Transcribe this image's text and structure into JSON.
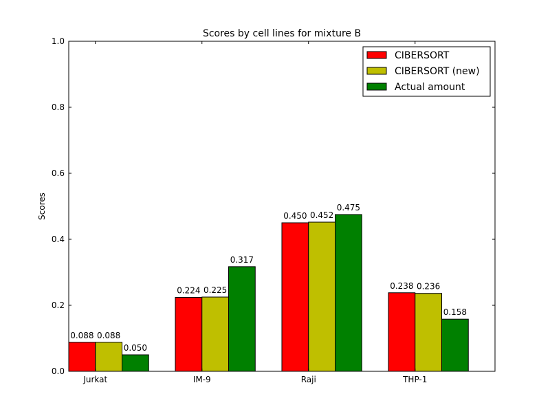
{
  "chart_data": {
    "type": "bar",
    "title": "Scores by cell lines for mixture B",
    "xlabel": "",
    "ylabel": "Scores",
    "categories": [
      "Jurkat",
      "IM-9",
      "Raji",
      "THP-1"
    ],
    "series": [
      {
        "name": "CIBERSORT",
        "color": "#ff0000",
        "values": [
          0.088,
          0.224,
          0.45,
          0.238
        ],
        "labels": [
          "0.088",
          "0.224",
          "0.450",
          "0.238"
        ]
      },
      {
        "name": "CIBERSORT (new)",
        "color": "#bfbf00",
        "values": [
          0.088,
          0.225,
          0.452,
          0.236
        ],
        "labels": [
          "0.088",
          "0.225",
          "0.452",
          "0.236"
        ]
      },
      {
        "name": "Actual amount",
        "color": "#008000",
        "values": [
          0.05,
          0.317,
          0.475,
          0.158
        ],
        "labels": [
          "0.050",
          "0.317",
          "0.475",
          "0.158"
        ]
      }
    ],
    "ylim": [
      0,
      1.0
    ],
    "yticks": [
      0.0,
      0.2,
      0.4,
      0.6,
      0.8,
      1.0
    ],
    "ytick_labels": [
      "0.0",
      "0.2",
      "0.4",
      "0.6",
      "0.8",
      "1.0"
    ],
    "grid": false,
    "legend_position": "top-right"
  }
}
